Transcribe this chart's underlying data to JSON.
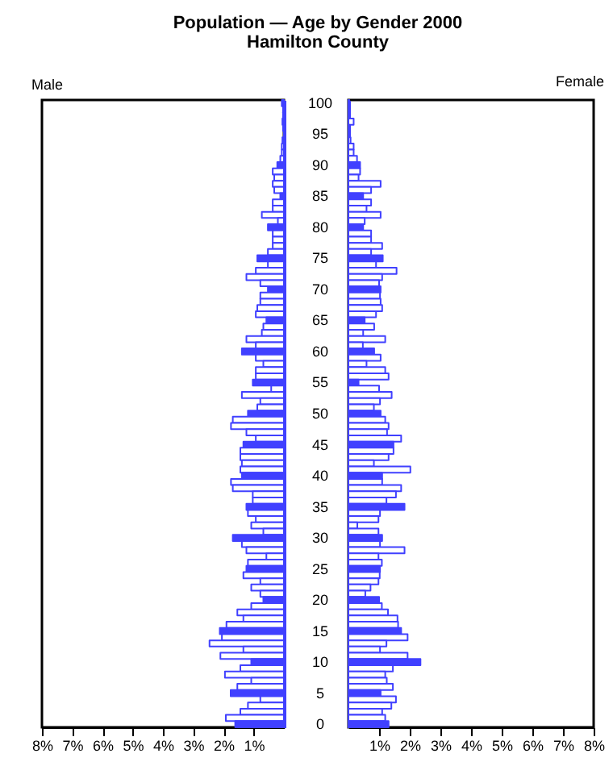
{
  "chart_data": [
    {
      "type": "bar",
      "orientation": "horizontal",
      "title": "Population — Age by Gender 2000",
      "subtitle": "Hamilton County",
      "tick_labels": "x",
      "categories": [
        "100",
        null,
        null,
        null,
        null,
        "95",
        null,
        null,
        null,
        null,
        "90",
        null,
        null,
        null,
        null,
        "85",
        null,
        null,
        null,
        null,
        "80",
        null,
        null,
        null,
        null,
        "75",
        null,
        null,
        null,
        null,
        "70",
        null,
        null,
        null,
        null,
        "65",
        null,
        null,
        null,
        null,
        "60",
        null,
        null,
        null,
        null,
        "55",
        null,
        null,
        null,
        null,
        "50",
        null,
        null,
        null,
        null,
        "45",
        null,
        null,
        null,
        null,
        "40",
        null,
        null,
        null,
        null,
        "35",
        null,
        null,
        null,
        null,
        "30",
        null,
        null,
        null,
        null,
        "25",
        null,
        null,
        null,
        null,
        "20",
        null,
        null,
        null,
        null,
        "15",
        null,
        null,
        null,
        null,
        "10",
        null,
        null,
        null,
        null,
        "5",
        null,
        null,
        null,
        null,
        "0"
      ],
      "xlim": [
        8,
        0
      ],
      "xticks": [
        {
          "value": 8,
          "label": "8%"
        },
        {
          "value": 7,
          "label": "7%"
        },
        {
          "value": 6,
          "label": "6%"
        },
        {
          "value": 5,
          "label": "5%"
        },
        {
          "value": 4,
          "label": "4%"
        },
        {
          "value": 3,
          "label": "3%"
        },
        {
          "value": 2,
          "label": "2%"
        },
        {
          "value": 1,
          "label": "1%"
        }
      ],
      "series": [
        {
          "name": "Male",
          "color": "#4040ff",
          "colors": [
            "#4040ff",
            "#ffffff",
            "#ffffff",
            "#ffffff",
            "#ffffff",
            "#4040ff",
            "#ffffff",
            "#ffffff",
            "#ffffff",
            "#ffffff",
            "#4040ff",
            "#ffffff",
            "#ffffff",
            "#ffffff",
            "#ffffff",
            "#4040ff",
            "#ffffff",
            "#ffffff",
            "#ffffff",
            "#ffffff",
            "#4040ff",
            "#ffffff",
            "#ffffff",
            "#ffffff",
            "#ffffff",
            "#4040ff",
            "#ffffff",
            "#ffffff",
            "#ffffff",
            "#ffffff",
            "#4040ff",
            "#ffffff",
            "#ffffff",
            "#ffffff",
            "#ffffff",
            "#4040ff",
            "#ffffff",
            "#ffffff",
            "#ffffff",
            "#ffffff",
            "#4040ff",
            "#ffffff",
            "#ffffff",
            "#ffffff",
            "#ffffff",
            "#4040ff",
            "#ffffff",
            "#ffffff",
            "#ffffff",
            "#ffffff",
            "#4040ff",
            "#ffffff",
            "#ffffff",
            "#ffffff",
            "#ffffff",
            "#4040ff",
            "#ffffff",
            "#ffffff",
            "#ffffff",
            "#ffffff",
            "#4040ff",
            "#ffffff",
            "#ffffff",
            "#ffffff",
            "#ffffff",
            "#4040ff",
            "#ffffff",
            "#ffffff",
            "#ffffff",
            "#ffffff",
            "#4040ff",
            "#ffffff",
            "#ffffff",
            "#ffffff",
            "#ffffff",
            "#4040ff",
            "#ffffff",
            "#ffffff",
            "#ffffff",
            "#ffffff",
            "#4040ff",
            "#ffffff",
            "#ffffff",
            "#ffffff",
            "#ffffff",
            "#4040ff",
            "#ffffff",
            "#ffffff",
            "#ffffff",
            "#ffffff",
            "#4040ff",
            "#ffffff",
            "#ffffff",
            "#ffffff",
            "#ffffff",
            "#4040ff",
            "#ffffff",
            "#ffffff",
            "#ffffff",
            "#ffffff",
            "#4040ff"
          ],
          "values": [
            0.07,
            0.03,
            0.03,
            0.05,
            0.03,
            null,
            0.05,
            0.07,
            0.07,
            0.12,
            0.22,
            0.37,
            0.32,
            0.37,
            0.32,
            0.12,
            0.37,
            0.37,
            0.73,
            0.2,
            0.53,
            0.37,
            0.37,
            0.37,
            0.53,
            0.88,
            0.53,
            0.93,
            1.24,
            0.78,
            0.53,
            0.78,
            0.78,
            0.88,
            0.93,
            0.58,
            0.68,
            0.73,
            1.24,
            0.93,
            1.39,
            0.93,
            0.68,
            0.93,
            0.93,
            1.03,
            0.42,
            1.39,
            0.78,
            0.88,
            1.19,
            1.69,
            1.75,
            1.24,
            0.93,
            1.34,
            1.44,
            1.44,
            1.39,
            1.44,
            1.39,
            1.75,
            1.69,
            1.03,
            1.03,
            1.24,
            1.19,
            0.93,
            1.08,
            0.68,
            1.69,
            1.39,
            1.24,
            0.58,
            1.19,
            1.24,
            1.34,
            0.78,
            1.08,
            0.78,
            0.68,
            1.08,
            1.54,
            1.34,
            1.9,
            2.12,
            2.05,
            2.46,
            1.34,
            2.1,
            1.08,
            1.44,
            1.95,
            1.08,
            1.54,
            1.76,
            0.78,
            1.19,
            1.44,
            1.92,
            1.61
          ]
        }
      ]
    },
    {
      "type": "bar",
      "orientation": "horizontal",
      "categories": [
        "100",
        null,
        null,
        null,
        null,
        "95",
        null,
        null,
        null,
        null,
        "90",
        null,
        null,
        null,
        null,
        "85",
        null,
        null,
        null,
        null,
        "80",
        null,
        null,
        null,
        null,
        "75",
        null,
        null,
        null,
        null,
        "70",
        null,
        null,
        null,
        null,
        "65",
        null,
        null,
        null,
        null,
        "60",
        null,
        null,
        null,
        null,
        "55",
        null,
        null,
        null,
        null,
        "50",
        null,
        null,
        null,
        null,
        "45",
        null,
        null,
        null,
        null,
        "40",
        null,
        null,
        null,
        null,
        "35",
        null,
        null,
        null,
        null,
        "30",
        null,
        null,
        null,
        null,
        "25",
        null,
        null,
        null,
        null,
        "20",
        null,
        null,
        null,
        null,
        "15",
        null,
        null,
        null,
        null,
        "10",
        null,
        null,
        null,
        null,
        "5",
        null,
        null,
        null,
        null,
        "0"
      ],
      "xlim": [
        0,
        8
      ],
      "xticks": [
        {
          "value": 1,
          "label": "1%"
        },
        {
          "value": 2,
          "label": "2%"
        },
        {
          "value": 3,
          "label": "3%"
        },
        {
          "value": 4,
          "label": "4%"
        },
        {
          "value": 5,
          "label": "5%"
        },
        {
          "value": 6,
          "label": "6%"
        },
        {
          "value": 7,
          "label": "7%"
        },
        {
          "value": 8,
          "label": "8%"
        }
      ],
      "series": [
        {
          "name": "Female",
          "color": "#4040ff",
          "colors": [
            "#4040ff",
            "#ffffff",
            "#ffffff",
            "#ffffff",
            "#ffffff",
            "#4040ff",
            "#ffffff",
            "#ffffff",
            "#ffffff",
            "#ffffff",
            "#4040ff",
            "#ffffff",
            "#ffffff",
            "#ffffff",
            "#ffffff",
            "#4040ff",
            "#ffffff",
            "#ffffff",
            "#ffffff",
            "#ffffff",
            "#4040ff",
            "#ffffff",
            "#ffffff",
            "#ffffff",
            "#ffffff",
            "#4040ff",
            "#ffffff",
            "#ffffff",
            "#ffffff",
            "#ffffff",
            "#4040ff",
            "#ffffff",
            "#ffffff",
            "#ffffff",
            "#ffffff",
            "#4040ff",
            "#ffffff",
            "#ffffff",
            "#ffffff",
            "#ffffff",
            "#4040ff",
            "#ffffff",
            "#ffffff",
            "#ffffff",
            "#ffffff",
            "#4040ff",
            "#ffffff",
            "#ffffff",
            "#ffffff",
            "#ffffff",
            "#4040ff",
            "#ffffff",
            "#ffffff",
            "#ffffff",
            "#ffffff",
            "#4040ff",
            "#ffffff",
            "#ffffff",
            "#ffffff",
            "#ffffff",
            "#4040ff",
            "#ffffff",
            "#ffffff",
            "#ffffff",
            "#ffffff",
            "#4040ff",
            "#ffffff",
            "#ffffff",
            "#ffffff",
            "#ffffff",
            "#4040ff",
            "#ffffff",
            "#ffffff",
            "#ffffff",
            "#ffffff",
            "#4040ff",
            "#ffffff",
            "#ffffff",
            "#ffffff",
            "#ffffff",
            "#4040ff",
            "#ffffff",
            "#ffffff",
            "#ffffff",
            "#ffffff",
            "#4040ff",
            "#ffffff",
            "#ffffff",
            "#ffffff",
            "#ffffff",
            "#4040ff",
            "#ffffff",
            "#ffffff",
            "#ffffff",
            "#ffffff",
            "#4040ff",
            "#ffffff",
            "#ffffff",
            "#ffffff",
            "#ffffff",
            "#4040ff"
          ],
          "values": [
            0.03,
            0.03,
            0.03,
            0.17,
            0.03,
            null,
            0.07,
            0.17,
            0.17,
            0.28,
            0.38,
            0.38,
            0.33,
            1.05,
            0.74,
            0.48,
            0.74,
            0.59,
            1.05,
            0.53,
            0.48,
            0.74,
            0.74,
            1.1,
            0.74,
            1.12,
            0.9,
            1.57,
            1.1,
            1.0,
            1.05,
            1.03,
            1.05,
            1.1,
            0.9,
            0.53,
            0.84,
            0.48,
            1.2,
            0.47,
            0.84,
            1.05,
            0.59,
            1.2,
            1.31,
            0.33,
            1.0,
            1.41,
            1.03,
            0.83,
            1.05,
            1.2,
            1.31,
            1.26,
            1.72,
            1.47,
            1.47,
            1.31,
            0.83,
            2.02,
            1.1,
            1.1,
            1.72,
            1.55,
            1.24,
            1.83,
            1.03,
            0.98,
            0.29,
            0.98,
            1.1,
            1.03,
            1.83,
            0.98,
            1.09,
            1.03,
            1.02,
            0.98,
            0.72,
            0.55,
            1.0,
            1.09,
            1.29,
            1.6,
            1.62,
            1.72,
            1.93,
            1.24,
            1.03,
            1.93,
            2.35,
            1.45,
            1.2,
            1.25,
            1.45,
            1.05,
            1.55,
            1.4,
            1.1,
            1.2,
            1.31
          ]
        }
      ]
    }
  ]
}
